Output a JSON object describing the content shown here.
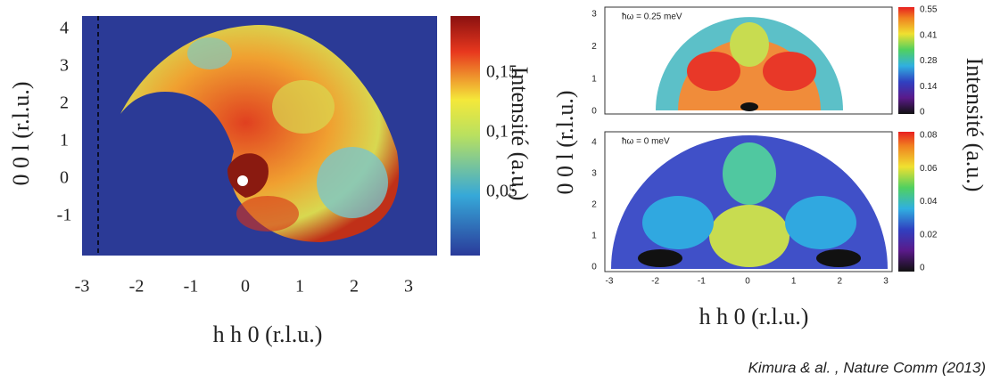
{
  "left_panel": {
    "x_ticks": [
      "-3",
      "-2",
      "-1",
      "0",
      "1",
      "2",
      "3"
    ],
    "y_ticks": [
      "4",
      "3",
      "2",
      "1",
      "0",
      "-1"
    ],
    "colorbar_ticks": [
      "0,15",
      "0,1",
      "0,05"
    ],
    "y_label": "0 0 l (r.l.u.)",
    "x_label": "h h 0 (r.l.u.)",
    "colorbar_label": "Intensité (a.u.)"
  },
  "right_panel": {
    "top": {
      "annotation": "ħω = 0.25 meV",
      "y_ticks": [
        "3",
        "2",
        "1",
        "0"
      ],
      "colorbar_ticks": [
        "0.55",
        "0.41",
        "0.28",
        "0.14",
        "0"
      ]
    },
    "bottom": {
      "annotation": "ħω = 0 meV",
      "y_ticks": [
        "4",
        "3",
        "2",
        "1",
        "0"
      ],
      "x_ticks": [
        "-3",
        "-2",
        "-1",
        "0",
        "1",
        "2",
        "3"
      ],
      "colorbar_ticks": [
        "0.08",
        "0.06",
        "0.04",
        "0.02",
        "0"
      ]
    },
    "y_label": "0 0 l (r.l.u.)",
    "x_label": "h h 0 (r.l.u.)",
    "colorbar_label": "Intensité (a.u.)"
  },
  "citation": "Kimura & al. , Nature Comm (2013)"
}
